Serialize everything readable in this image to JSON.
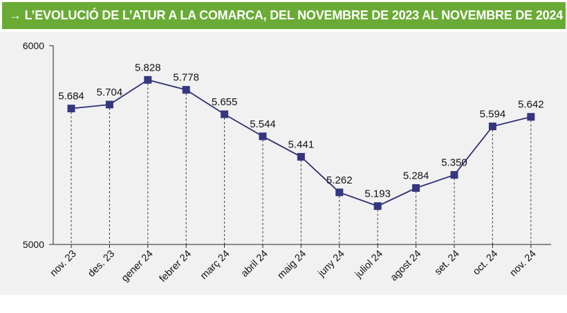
{
  "header": {
    "title": "→ L’EVOLUCIÓ DE L’ATUR A LA COMARCA, DEL NOVEMBRE DE 2023 AL NOVEMBRE DE 2024"
  },
  "colors": {
    "title_bg": "#6aab35",
    "plot_bg": "#f1f1f2",
    "line": "#2e2f73",
    "marker": "#353680"
  },
  "chart_data": {
    "type": "line",
    "title": "→ L’EVOLUCIÓ DE L’ATUR A LA COMARCA, DEL NOVEMBRE DE 2023 AL NOVEMBRE DE 2024",
    "xlabel": "",
    "ylabel": "",
    "ylim": [
      5000,
      6000
    ],
    "yticks": [
      "5000",
      "6000"
    ],
    "grid": false,
    "legend": "none",
    "categories": [
      "nov. 23",
      "des. 23",
      "gener 24",
      "febrer 24",
      "març 24",
      "abril 24",
      "maig 24",
      "juny 24",
      "juliol 24",
      "agost 24",
      "set. 24",
      "oct. 24",
      "nov. 24"
    ],
    "values": [
      5684,
      5704,
      5828,
      5778,
      5655,
      5544,
      5441,
      5262,
      5193,
      5284,
      5350,
      5594,
      5642
    ],
    "value_labels": [
      "5.684",
      "5.704",
      "5.828",
      "5.778",
      "5.655",
      "5.544",
      "5.441",
      "5.262",
      "5.193",
      "5.284",
      "5.350",
      "5.594",
      "5.642"
    ]
  }
}
